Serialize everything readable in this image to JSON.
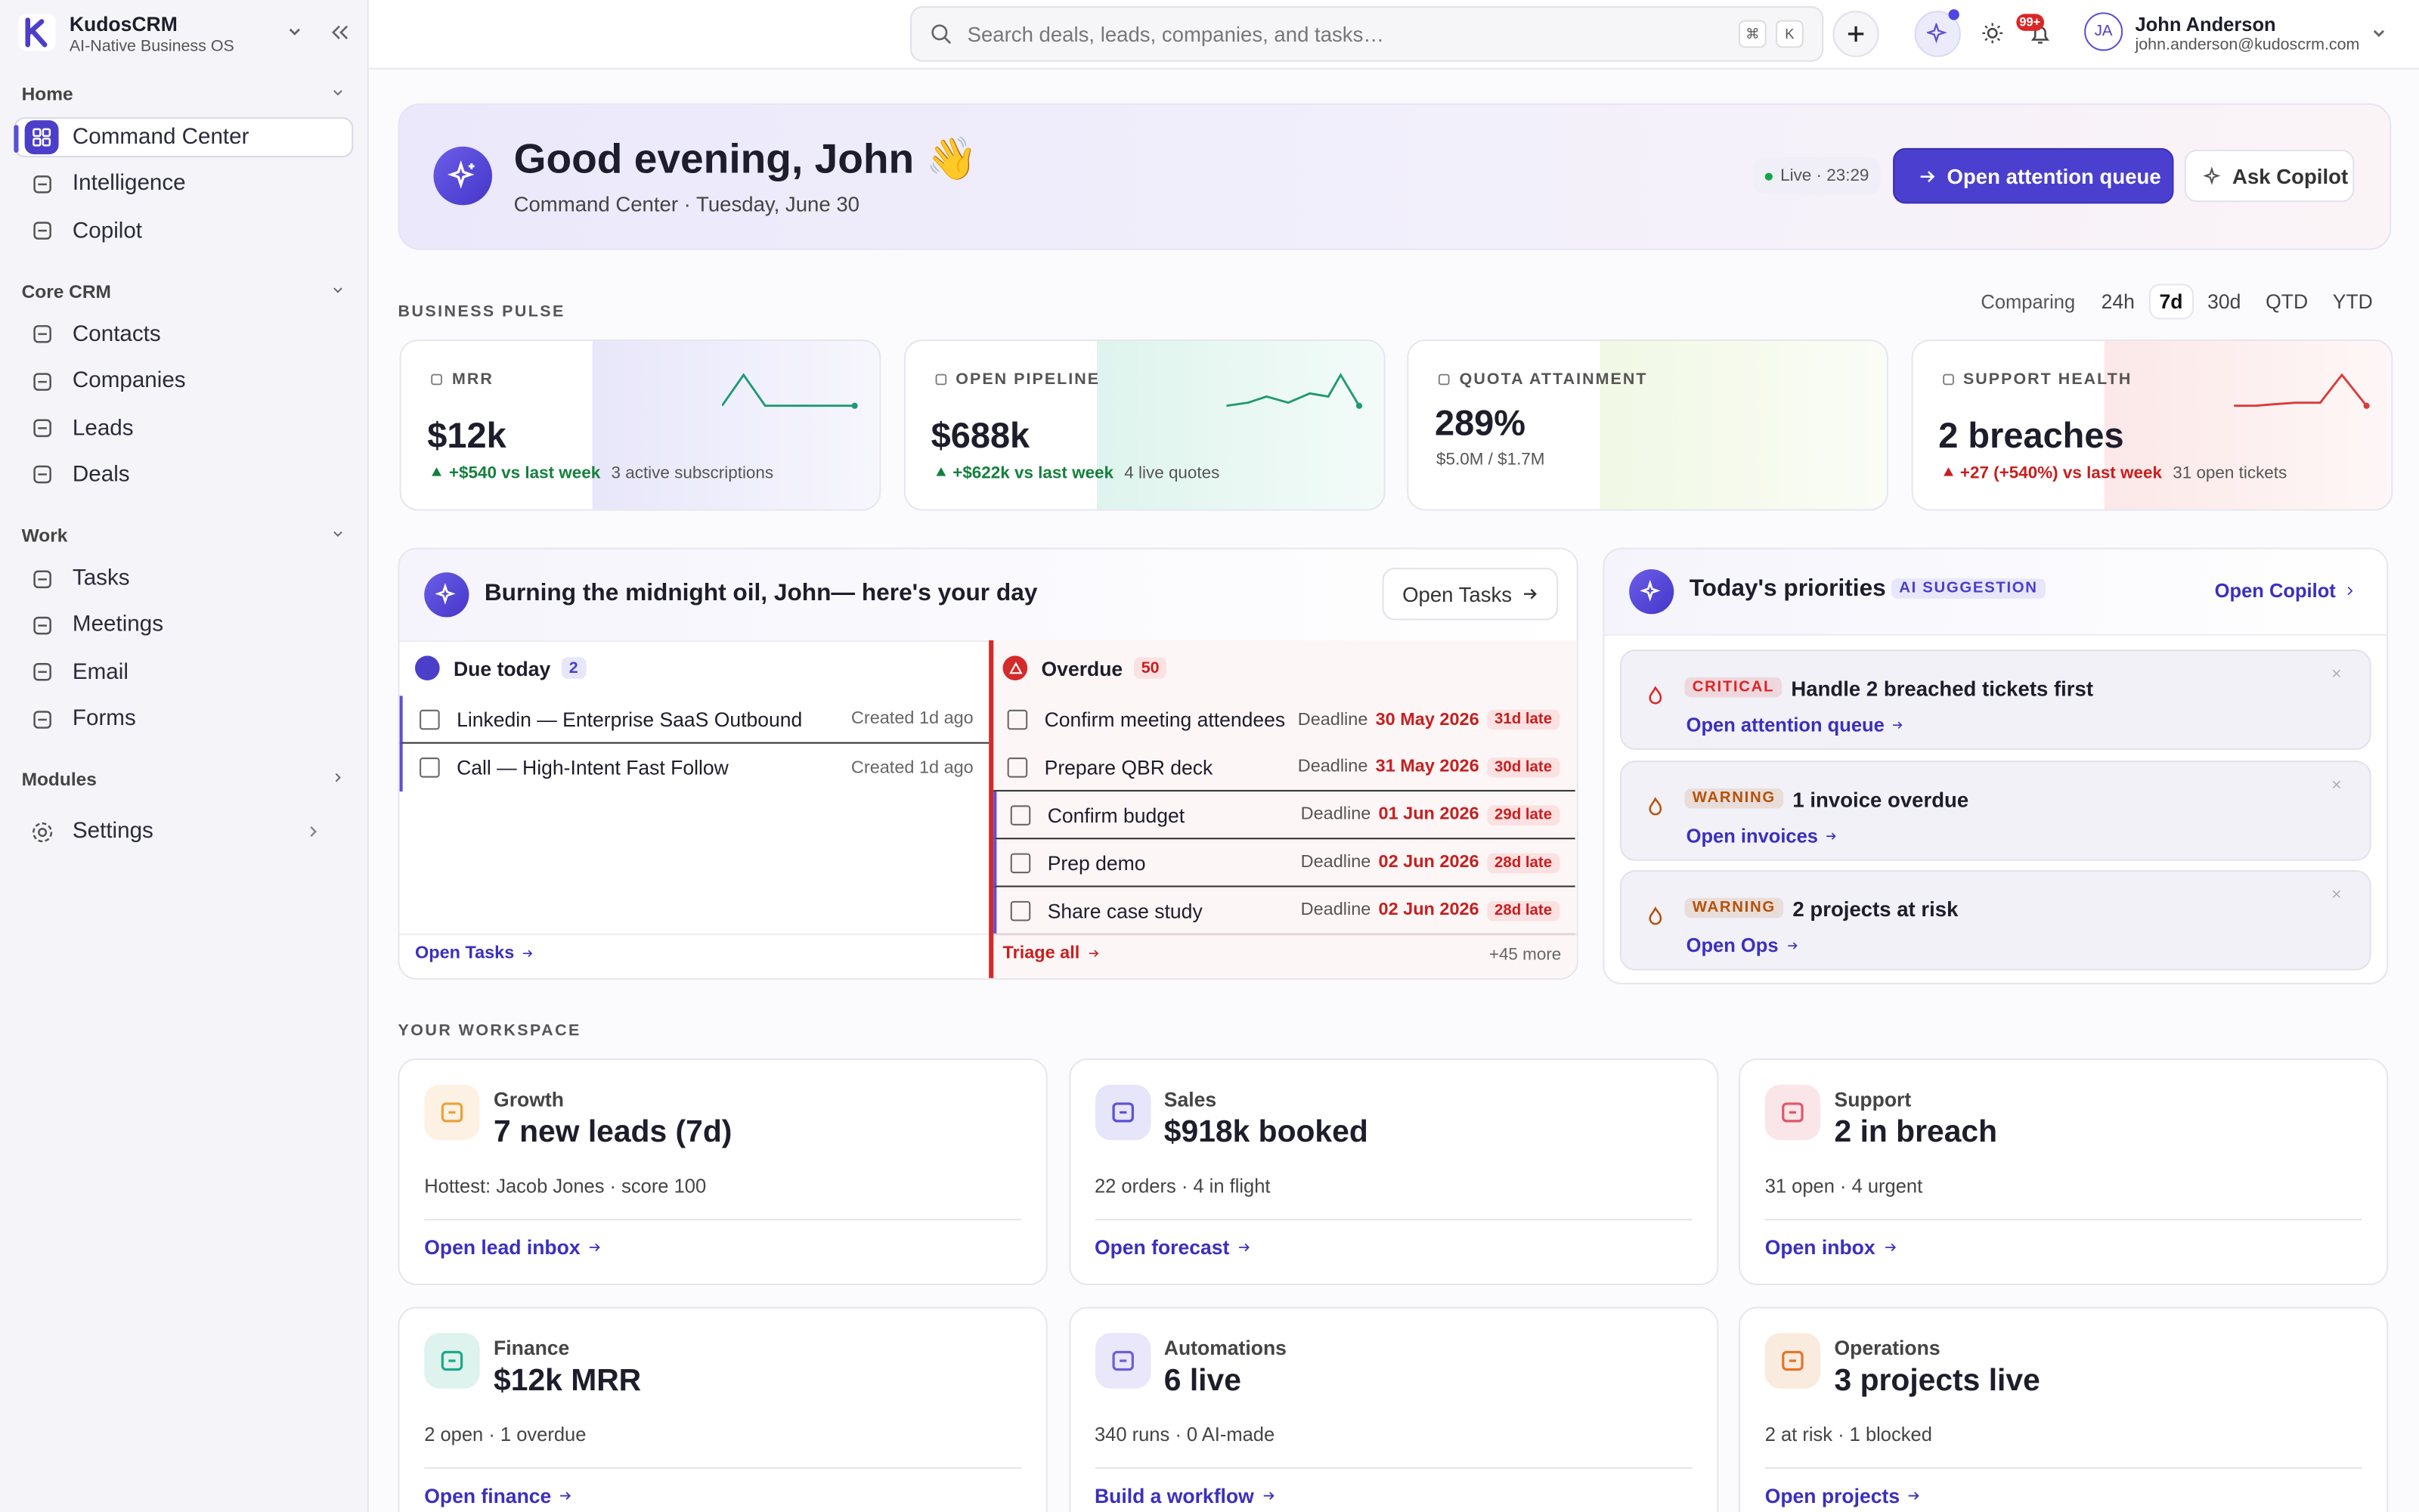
{
  "sidebar": {
    "brand": {
      "name": "KudosCRM",
      "tagline": "AI-Native Business OS"
    },
    "sections": [
      {
        "title": "Home",
        "items": [
          "Command Center",
          "Intelligence",
          "Copilot"
        ]
      },
      {
        "title": "Core CRM",
        "items": [
          "Contacts",
          "Companies",
          "Leads",
          "Deals"
        ]
      },
      {
        "title": "Work",
        "items": [
          "Tasks",
          "Meetings",
          "Email",
          "Forms"
        ]
      },
      {
        "title": "Modules",
        "items": []
      }
    ],
    "active_item": "Command Center",
    "settings": "Settings"
  },
  "topbar": {
    "search_placeholder": "Search deals, leads, companies, and tasks…",
    "shortcut": [
      "⌘",
      "K"
    ],
    "notifications": "99+",
    "user": {
      "initials": "JA",
      "name": "John Anderson",
      "email": "john.anderson@kudoscrm.com"
    }
  },
  "hero": {
    "greeting": "Good evening, John 👋",
    "subtitle": "Command Center · Tuesday, June 30",
    "live": "Live · 23:29",
    "primary_action": "Open attention queue",
    "secondary_action": "Ask Copilot"
  },
  "pulse": {
    "title": "BUSINESS PULSE",
    "comparing": "Comparing",
    "ranges": [
      "24h",
      "7d",
      "30d",
      "QTD",
      "YTD"
    ],
    "active_range": "7d",
    "cards": [
      {
        "label": "MRR",
        "value": "$12k",
        "delta": "+$540 vs last week",
        "note": "3 active subscriptions",
        "color": "#8b83e6",
        "delta_color": "#15803d"
      },
      {
        "label": "OPEN PIPELINE",
        "value": "$688k",
        "delta": "+$622k vs last week",
        "note": "4 live quotes",
        "color": "#5cc9a7",
        "delta_color": "#15803d"
      },
      {
        "label": "QUOTA ATTAINMENT",
        "value": "289%",
        "note": "$5.0M / $1.7M",
        "color": "#b9dd7c"
      },
      {
        "label": "SUPPORT HEALTH",
        "value": "2 breaches",
        "delta": "+27 (+540%) vs last week",
        "note": "31 open tickets",
        "color": "#f08b8b",
        "delta_color": "#c81e1e"
      }
    ]
  },
  "day": {
    "title": "Burning the midnight oil, John— here's your day",
    "action": "Open Tasks",
    "due": {
      "title": "Due today",
      "count": 2,
      "items": [
        {
          "title": "Linkedin — Enterprise SaaS Outbound",
          "meta": "Created 1d ago"
        },
        {
          "title": "Call — High-Intent Fast Follow",
          "meta": "Created 1d ago"
        }
      ],
      "link": "Open Tasks"
    },
    "overdue": {
      "title": "Overdue",
      "count": 50,
      "deadline_label": "Deadline",
      "items": [
        {
          "title": "Confirm meeting attendees",
          "date": "30 May 2026",
          "late": "31d late"
        },
        {
          "title": "Prepare QBR deck",
          "date": "31 May 2026",
          "late": "30d late"
        },
        {
          "title": "Confirm budget",
          "date": "01 Jun 2026",
          "late": "29d late"
        },
        {
          "title": "Prep demo",
          "date": "02 Jun 2026",
          "late": "28d late"
        },
        {
          "title": "Share case study",
          "date": "02 Jun 2026",
          "late": "28d late"
        }
      ],
      "link": "Triage all",
      "more": "+45 more"
    }
  },
  "priorities": {
    "title": "Today's priorities",
    "badge": "AI SUGGESTION",
    "link": "Open Copilot",
    "items": [
      {
        "level": "CRITICAL",
        "text": "Handle 2 breached tickets first",
        "link": "Open attention queue",
        "color": "#dc2626"
      },
      {
        "level": "WARNING",
        "text": "1 invoice overdue",
        "link": "Open invoices",
        "color": "#b45309"
      },
      {
        "level": "WARNING",
        "text": "2 projects at risk",
        "link": "Open Ops",
        "color": "#b45309"
      }
    ]
  },
  "workspace": {
    "title": "YOUR WORKSPACE",
    "cards": [
      {
        "category": "Growth",
        "headline": "7 new leads (7d)",
        "detail": "Hottest: Jacob Jones · score 100",
        "link": "Open lead inbox",
        "color": "#e9a23b"
      },
      {
        "category": "Sales",
        "headline": "$918k booked",
        "detail": "22 orders · 4 in flight",
        "link": "Open forecast",
        "color": "#5b50d6"
      },
      {
        "category": "Support",
        "headline": "2 in breach",
        "detail": "31 open · 4 urgent",
        "link": "Open inbox",
        "color": "#e0566b"
      },
      {
        "category": "Finance",
        "headline": "$12k MRR",
        "detail": "2 open · 1 overdue",
        "link": "Open finance",
        "color": "#1fa88a"
      },
      {
        "category": "Automations",
        "headline": "6 live",
        "detail": "340 runs · 0 AI-made",
        "link": "Build a workflow",
        "color": "#6d5fd6"
      },
      {
        "category": "Operations",
        "headline": "3 projects live",
        "detail": "2 at risk · 1 blocked",
        "link": "Open projects",
        "color": "#e0762b"
      }
    ]
  }
}
